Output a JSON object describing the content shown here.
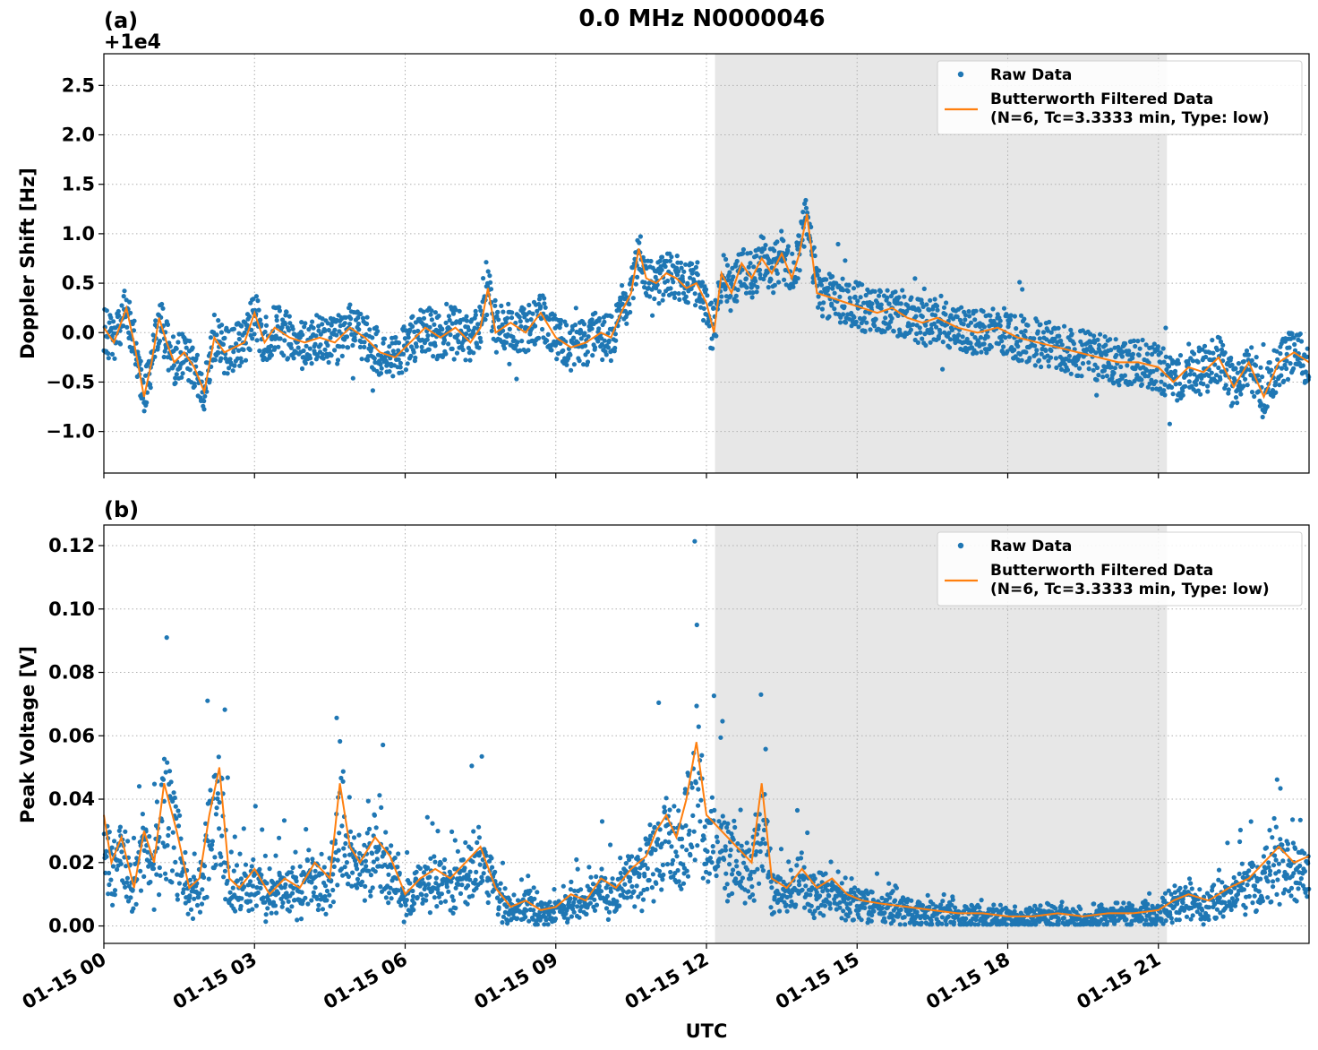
{
  "figure": {
    "title": "0.0 MHz N0000046",
    "xlabel": "UTC",
    "x_ticks": [
      "01-15 00",
      "01-15 03",
      "01-15 06",
      "01-15 09",
      "01-15 12",
      "01-15 15",
      "01-15 18",
      "01-15 21"
    ],
    "shaded_interval_hours": [
      12.17,
      21.17
    ],
    "colors": {
      "raw": "#1f77b4",
      "filtered": "#ff7f0e",
      "shade": "#e7e7e7"
    }
  },
  "legend": {
    "raw_label": "Raw Data",
    "filtered_label_line1": "Butterworth Filtered Data",
    "filtered_label_line2": "(N=6, Tc=3.3333 min, Type: low)",
    "placement": "top-right"
  },
  "chart_data": [
    {
      "type": "scatter",
      "panel_label": "(a)",
      "ylabel": "Doppler Shift [Hz]",
      "offset_text": "+1e4",
      "ylim": [
        -1.42,
        2.82
      ],
      "xlim_hours": [
        0,
        24
      ],
      "grid": true,
      "y_ticks": [
        "2.5",
        "2.0",
        "1.5",
        "1.0",
        "0.5",
        "0.0",
        "−0.5",
        "−1.0"
      ],
      "y_tick_values": [
        2.5,
        2.0,
        1.5,
        1.0,
        0.5,
        0.0,
        -0.5,
        -1.0
      ],
      "series": [
        {
          "name": "Butterworth Filtered Data",
          "x_hours": [
            0,
            0.2,
            0.45,
            0.6,
            0.8,
            0.95,
            1.1,
            1.25,
            1.4,
            1.6,
            1.8,
            2.0,
            2.2,
            2.4,
            2.6,
            2.8,
            3.0,
            3.2,
            3.4,
            3.7,
            4.0,
            4.3,
            4.6,
            4.9,
            5.2,
            5.5,
            5.8,
            6.1,
            6.4,
            6.7,
            7.0,
            7.3,
            7.5,
            7.65,
            7.8,
            8.1,
            8.4,
            8.7,
            9.0,
            9.3,
            9.6,
            9.9,
            10.1,
            10.3,
            10.5,
            10.65,
            10.8,
            11.0,
            11.2,
            11.4,
            11.6,
            11.8,
            12.0,
            12.15,
            12.3,
            12.5,
            12.7,
            12.9,
            13.1,
            13.3,
            13.5,
            13.7,
            13.85,
            14.0,
            14.2,
            14.5,
            14.8,
            15.1,
            15.4,
            15.7,
            16.0,
            16.3,
            16.6,
            17.0,
            17.4,
            17.8,
            18.2,
            18.6,
            19.0,
            19.4,
            19.8,
            20.2,
            20.6,
            21.0,
            21.3,
            21.6,
            21.9,
            22.2,
            22.5,
            22.8,
            23.1,
            23.4,
            23.7,
            24.0
          ],
          "values": [
            0.05,
            -0.1,
            0.25,
            -0.1,
            -0.65,
            -0.3,
            0.15,
            -0.1,
            -0.3,
            -0.2,
            -0.35,
            -0.6,
            -0.05,
            -0.2,
            -0.15,
            -0.1,
            0.2,
            -0.1,
            0.05,
            -0.05,
            -0.1,
            -0.05,
            -0.1,
            0.05,
            -0.05,
            -0.2,
            -0.25,
            -0.1,
            0.05,
            -0.05,
            0.05,
            -0.1,
            0.05,
            0.45,
            0.0,
            0.1,
            0.0,
            0.2,
            -0.05,
            -0.15,
            -0.1,
            0.0,
            -0.05,
            0.2,
            0.4,
            0.85,
            0.55,
            0.5,
            0.6,
            0.55,
            0.45,
            0.5,
            0.3,
            0.0,
            0.6,
            0.4,
            0.7,
            0.55,
            0.75,
            0.6,
            0.8,
            0.55,
            0.8,
            1.2,
            0.4,
            0.35,
            0.3,
            0.25,
            0.2,
            0.25,
            0.15,
            0.1,
            0.15,
            0.05,
            0.0,
            0.05,
            -0.05,
            -0.1,
            -0.15,
            -0.2,
            -0.25,
            -0.3,
            -0.3,
            -0.35,
            -0.5,
            -0.35,
            -0.4,
            -0.25,
            -0.55,
            -0.3,
            -0.65,
            -0.3,
            -0.2,
            -0.3
          ]
        },
        {
          "name": "Raw Data",
          "scatter_spread": 0.3
        }
      ]
    },
    {
      "type": "scatter",
      "panel_label": "(b)",
      "ylabel": "Peak Voltage [V]",
      "ylim": [
        -0.0055,
        0.1265
      ],
      "xlim_hours": [
        0,
        24
      ],
      "grid": true,
      "y_ticks": [
        "0.12",
        "0.10",
        "0.08",
        "0.06",
        "0.04",
        "0.02",
        "0.00"
      ],
      "y_tick_values": [
        0.12,
        0.1,
        0.08,
        0.06,
        0.04,
        0.02,
        0.0
      ],
      "series": [
        {
          "name": "Butterworth Filtered Data",
          "x_hours": [
            0,
            0.15,
            0.35,
            0.6,
            0.8,
            1.0,
            1.2,
            1.45,
            1.7,
            1.9,
            2.1,
            2.3,
            2.5,
            2.7,
            3.0,
            3.3,
            3.6,
            3.9,
            4.2,
            4.5,
            4.7,
            4.9,
            5.1,
            5.4,
            5.7,
            6.0,
            6.3,
            6.6,
            6.9,
            7.2,
            7.5,
            7.8,
            8.1,
            8.4,
            8.7,
            9.0,
            9.3,
            9.6,
            9.9,
            10.2,
            10.5,
            10.8,
            11.0,
            11.2,
            11.4,
            11.6,
            11.8,
            12.0,
            12.3,
            12.6,
            12.9,
            13.1,
            13.3,
            13.6,
            13.9,
            14.2,
            14.5,
            14.8,
            15.1,
            15.5,
            16.0,
            16.5,
            17.0,
            17.5,
            18.0,
            18.5,
            19.0,
            19.5,
            20.0,
            20.5,
            21.0,
            21.3,
            21.6,
            22.0,
            22.4,
            22.8,
            23.1,
            23.4,
            23.7,
            24.0
          ],
          "values": [
            0.035,
            0.02,
            0.028,
            0.012,
            0.03,
            0.02,
            0.045,
            0.03,
            0.012,
            0.015,
            0.035,
            0.05,
            0.015,
            0.012,
            0.018,
            0.01,
            0.015,
            0.012,
            0.02,
            0.015,
            0.045,
            0.025,
            0.02,
            0.028,
            0.022,
            0.01,
            0.015,
            0.018,
            0.015,
            0.02,
            0.025,
            0.012,
            0.006,
            0.008,
            0.005,
            0.006,
            0.01,
            0.008,
            0.015,
            0.012,
            0.018,
            0.022,
            0.03,
            0.035,
            0.028,
            0.04,
            0.058,
            0.035,
            0.03,
            0.025,
            0.02,
            0.045,
            0.015,
            0.012,
            0.018,
            0.012,
            0.015,
            0.01,
            0.008,
            0.007,
            0.006,
            0.005,
            0.004,
            0.004,
            0.003,
            0.003,
            0.004,
            0.003,
            0.004,
            0.004,
            0.005,
            0.008,
            0.01,
            0.008,
            0.012,
            0.015,
            0.02,
            0.025,
            0.02,
            0.022
          ]
        },
        {
          "name": "Raw Data",
          "scatter_spread": 0.35
        }
      ]
    }
  ]
}
